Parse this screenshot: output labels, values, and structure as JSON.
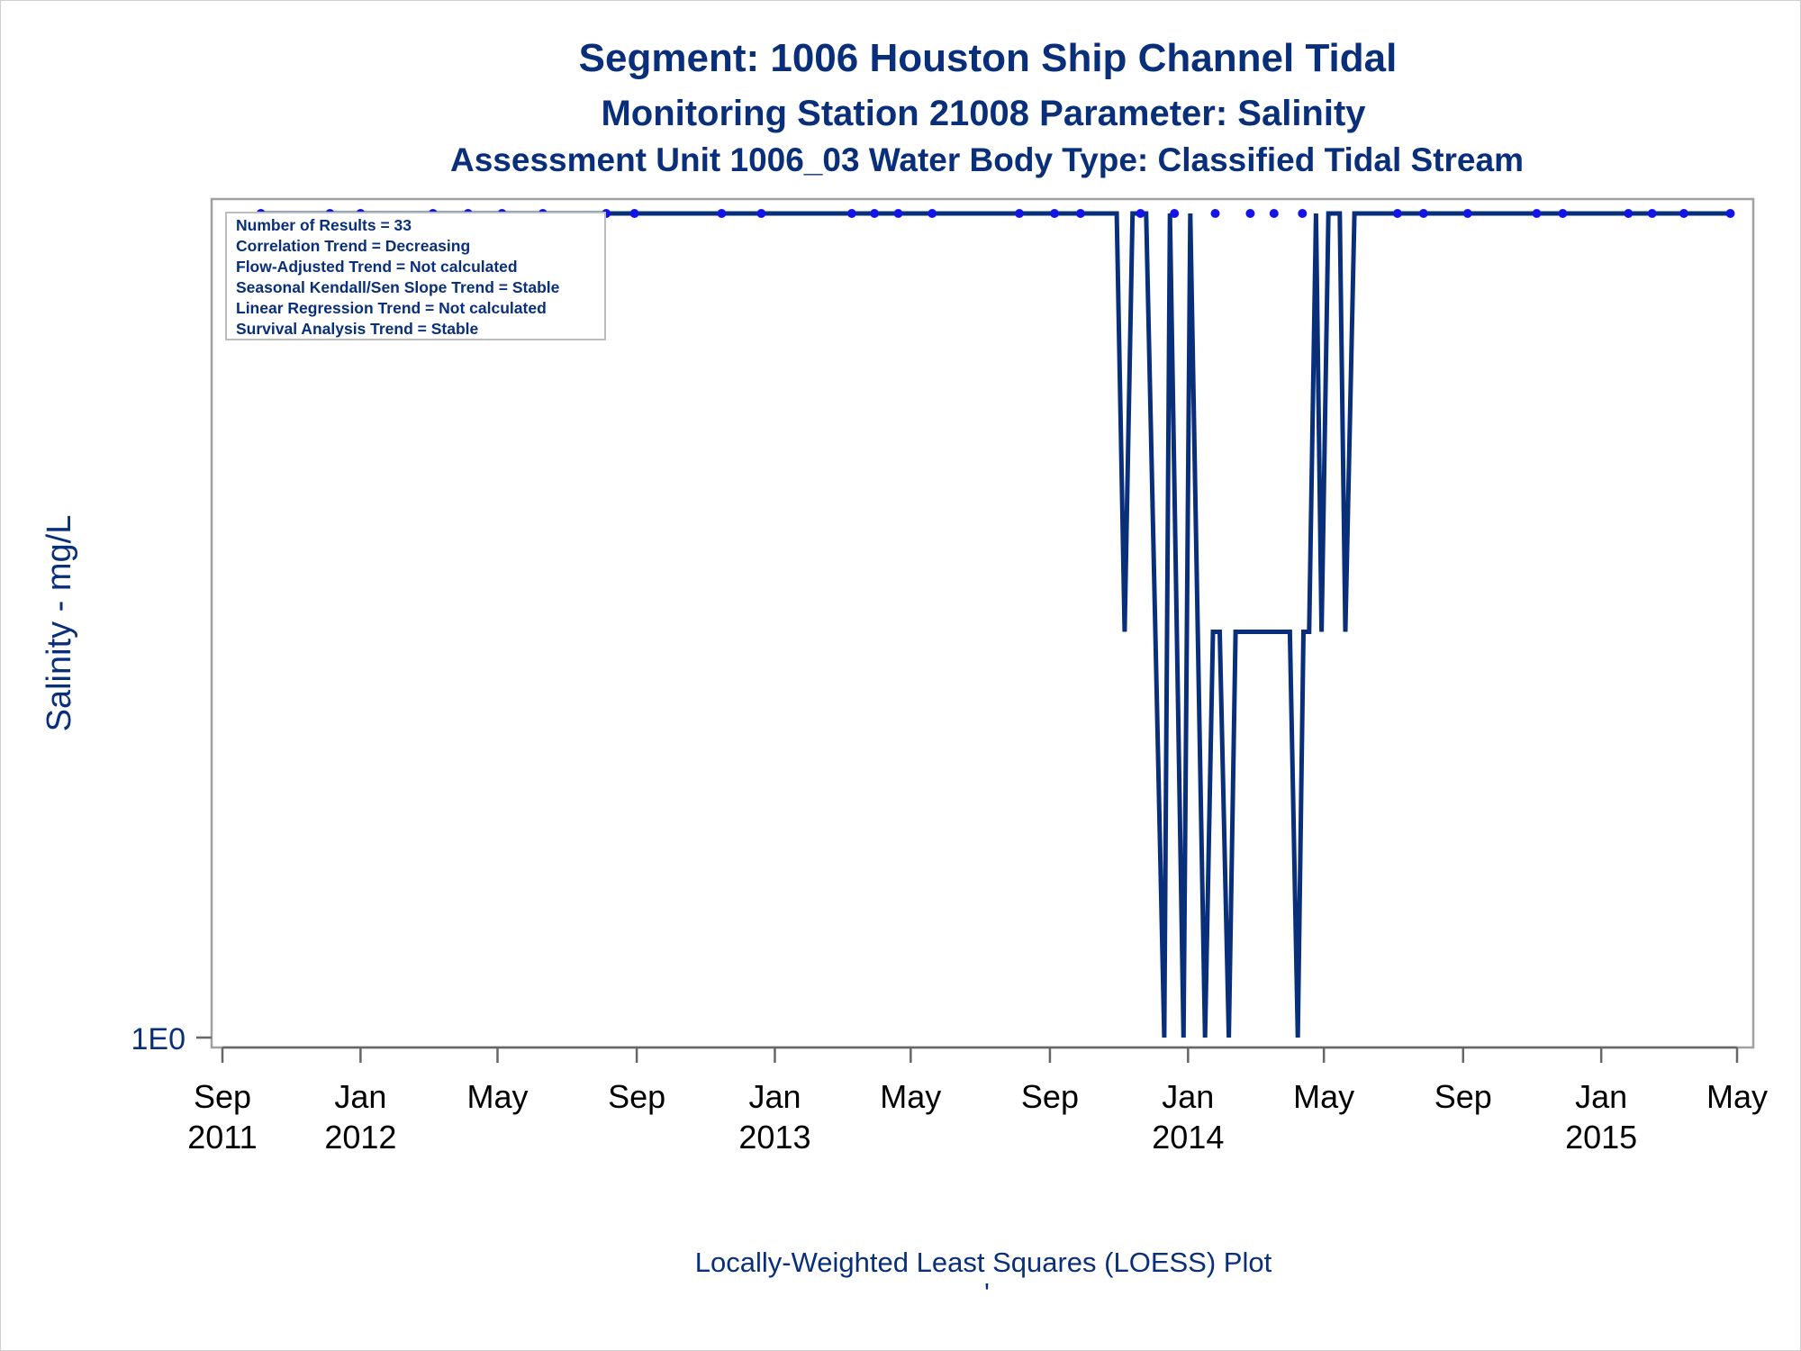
{
  "chart_data": {
    "type": "line",
    "title": "Segment: 1006  Houston Ship Channel Tidal",
    "subtitle": "Monitoring Station 21008 Parameter: Salinity",
    "subtitle2": "Assessment Unit 1006_03   Water Body Type: Classified Tidal Stream",
    "ylabel": "Salinity - mg/L",
    "xlabel": "",
    "footnote": "Locally-Weighted Least Squares (LOESS) Plot",
    "footnote_mark": "'",
    "y_scale": "log",
    "y_ticks": [
      {
        "value": 1,
        "label": "1E0"
      }
    ],
    "x_range": [
      "2011-08-20",
      "2015-05-15"
    ],
    "x_ticks": [
      {
        "date": "2011-09-01",
        "label": "Sep",
        "year": "2011"
      },
      {
        "date": "2012-01-01",
        "label": "Jan",
        "year": "2012"
      },
      {
        "date": "2012-05-01",
        "label": "May",
        "year": ""
      },
      {
        "date": "2012-09-01",
        "label": "Sep",
        "year": ""
      },
      {
        "date": "2013-01-01",
        "label": "Jan",
        "year": "2013"
      },
      {
        "date": "2013-05-01",
        "label": "May",
        "year": ""
      },
      {
        "date": "2013-09-01",
        "label": "Sep",
        "year": ""
      },
      {
        "date": "2014-01-01",
        "label": "Jan",
        "year": "2014"
      },
      {
        "date": "2014-05-01",
        "label": "May",
        "year": ""
      },
      {
        "date": "2014-09-01",
        "label": "Sep",
        "year": ""
      },
      {
        "date": "2015-01-01",
        "label": "Jan",
        "year": "2015"
      },
      {
        "date": "2015-05-01",
        "label": "May",
        "year": ""
      }
    ],
    "grid": false,
    "legend": "none",
    "stats_box": [
      "Number of Results = 33",
      "Correlation Trend = Decreasing",
      "Flow-Adjusted Trend = Not calculated",
      "Seasonal Kendall/Sen Slope Trend = Stable",
      "Linear Regression Trend = Not calculated",
      "Survival Analysis Trend = Stable"
    ],
    "series": [
      {
        "type": "scatter",
        "color": "#1414e6",
        "points": [
          {
            "x": "2011-10-05",
            "y": 1000
          },
          {
            "x": "2011-12-05",
            "y": 1000
          },
          {
            "x": "2012-01-01",
            "y": 1000
          },
          {
            "x": "2012-03-05",
            "y": 1000
          },
          {
            "x": "2012-04-05",
            "y": 1000
          },
          {
            "x": "2012-05-05",
            "y": 1000
          },
          {
            "x": "2012-06-10",
            "y": 1000
          },
          {
            "x": "2012-08-05",
            "y": 1000
          },
          {
            "x": "2012-08-30",
            "y": 1000
          },
          {
            "x": "2012-11-15",
            "y": 1000
          },
          {
            "x": "2012-12-20",
            "y": 1000
          },
          {
            "x": "2013-03-10",
            "y": 1000
          },
          {
            "x": "2013-03-30",
            "y": 1000
          },
          {
            "x": "2013-04-20",
            "y": 1000
          },
          {
            "x": "2013-05-20",
            "y": 1000
          },
          {
            "x": "2013-08-05",
            "y": 1000
          },
          {
            "x": "2013-09-05",
            "y": 1000
          },
          {
            "x": "2013-09-28",
            "y": 1000
          },
          {
            "x": "2013-11-20",
            "y": 1000
          },
          {
            "x": "2013-12-20",
            "y": 1000
          },
          {
            "x": "2014-01-25",
            "y": 1000
          },
          {
            "x": "2014-02-25",
            "y": 1000
          },
          {
            "x": "2014-03-18",
            "y": 1000
          },
          {
            "x": "2014-04-12",
            "y": 1000
          },
          {
            "x": "2014-07-05",
            "y": 1000
          },
          {
            "x": "2014-07-28",
            "y": 1000
          },
          {
            "x": "2014-09-05",
            "y": 1000
          },
          {
            "x": "2014-11-05",
            "y": 1000
          },
          {
            "x": "2014-11-28",
            "y": 1000
          },
          {
            "x": "2015-01-25",
            "y": 1000
          },
          {
            "x": "2015-02-15",
            "y": 1000
          },
          {
            "x": "2015-03-15",
            "y": 1000
          },
          {
            "x": "2015-04-25",
            "y": 1000
          }
        ]
      },
      {
        "type": "line",
        "color": "#0a2f7a",
        "points": [
          {
            "x": "2011-10-05",
            "y": 1000
          },
          {
            "x": "2013-10-30",
            "y": 1000
          },
          {
            "x": "2013-11-06",
            "y": 30
          },
          {
            "x": "2013-11-13",
            "y": 1000
          },
          {
            "x": "2013-11-25",
            "y": 1000
          },
          {
            "x": "2013-12-11",
            "y": 1
          },
          {
            "x": "2013-12-16",
            "y": 1000
          },
          {
            "x": "2013-12-28",
            "y": 1
          },
          {
            "x": "2014-01-03",
            "y": 1000
          },
          {
            "x": "2014-01-16",
            "y": 1
          },
          {
            "x": "2014-01-23",
            "y": 30
          },
          {
            "x": "2014-01-29",
            "y": 30
          },
          {
            "x": "2014-02-06",
            "y": 1
          },
          {
            "x": "2014-02-12",
            "y": 30
          },
          {
            "x": "2014-04-01",
            "y": 30
          },
          {
            "x": "2014-04-08",
            "y": 1
          },
          {
            "x": "2014-04-13",
            "y": 30
          },
          {
            "x": "2014-04-18",
            "y": 30
          },
          {
            "x": "2014-04-24",
            "y": 1000
          },
          {
            "x": "2014-04-29",
            "y": 30
          },
          {
            "x": "2014-05-05",
            "y": 1000
          },
          {
            "x": "2014-05-15",
            "y": 1000
          },
          {
            "x": "2014-05-20",
            "y": 30
          },
          {
            "x": "2014-05-28",
            "y": 1000
          },
          {
            "x": "2015-04-25",
            "y": 1000
          }
        ]
      }
    ]
  }
}
